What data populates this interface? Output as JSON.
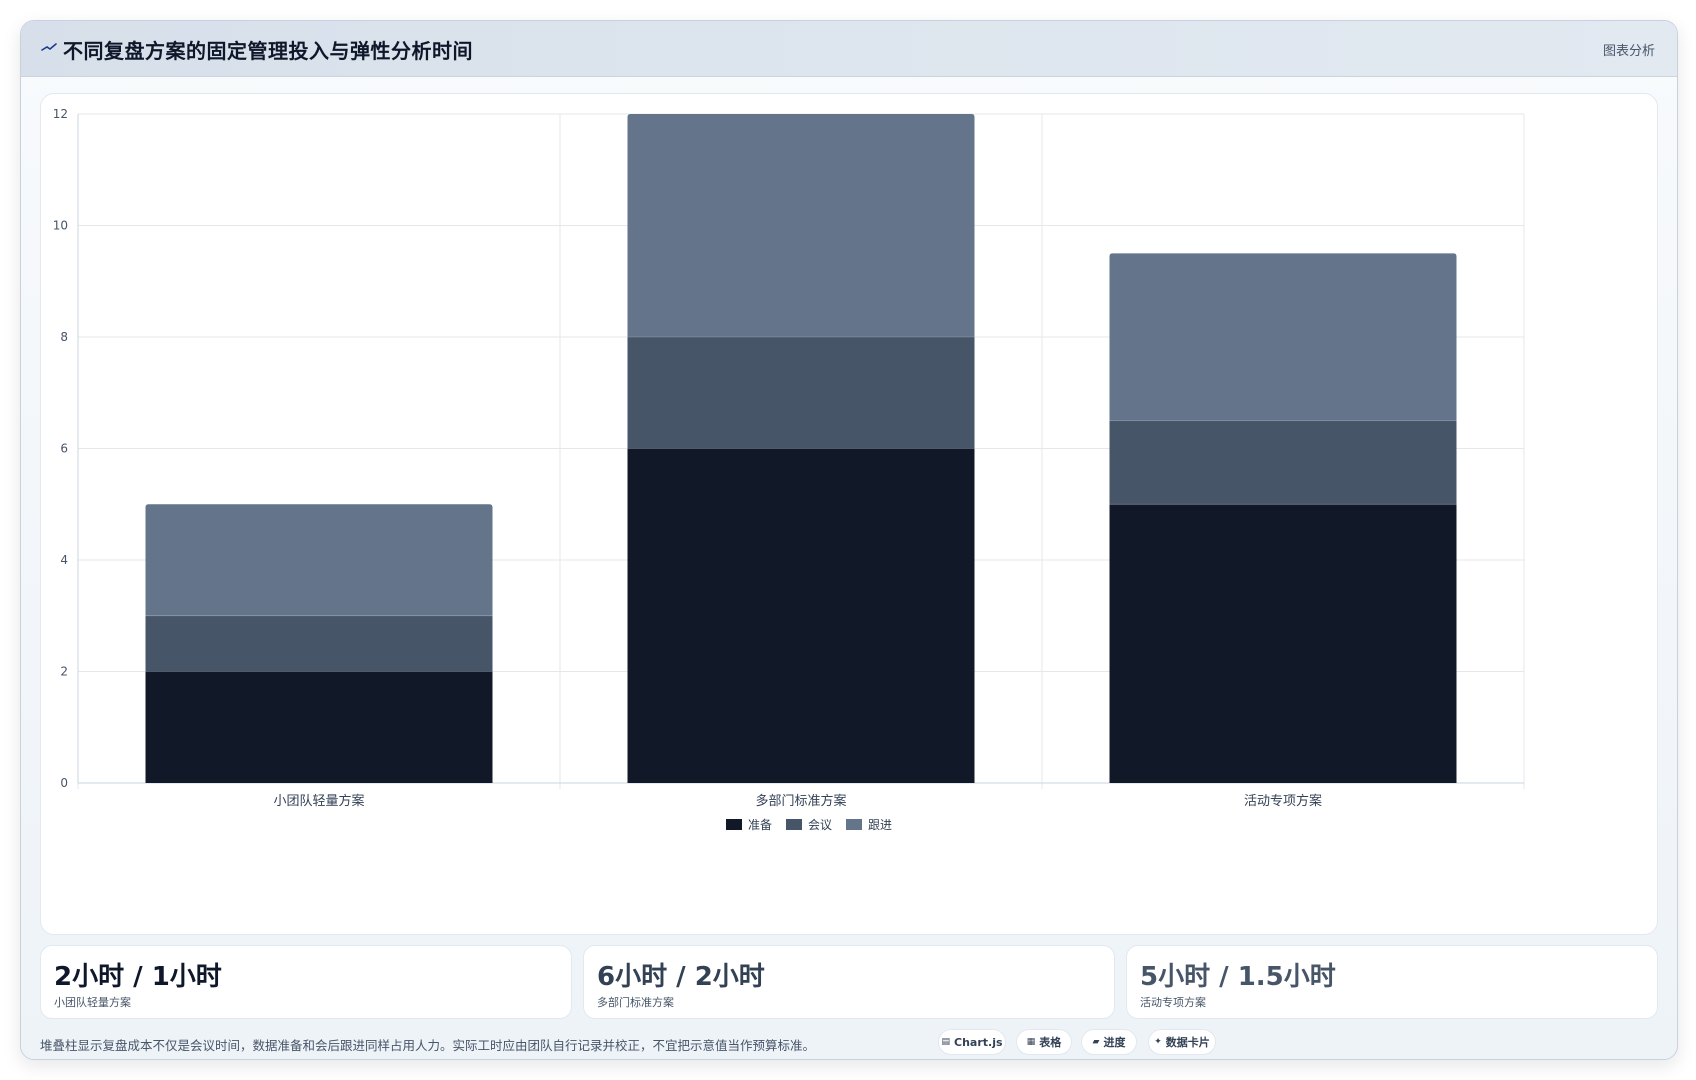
{
  "header": {
    "title": "不同复盘方案的固定管理投入与弹性分析时间",
    "tag": "图表分析"
  },
  "chart_data": {
    "type": "bar",
    "stacked": true,
    "categories": [
      "小团队轻量方案",
      "多部门标准方案",
      "活动专项方案"
    ],
    "series": [
      {
        "name": "准备",
        "values": [
          2,
          6,
          5
        ],
        "color": "#111827"
      },
      {
        "name": "会议",
        "values": [
          1,
          2,
          1.5
        ],
        "color": "#475569"
      },
      {
        "name": "跟进",
        "values": [
          2,
          4,
          3
        ],
        "color": "#64748b"
      }
    ],
    "ylim": [
      0,
      12
    ],
    "yticks": [
      0,
      2,
      4,
      6,
      8,
      10,
      12
    ],
    "grid": true,
    "legend": "bottom"
  },
  "cards": [
    {
      "value": "2小时 / 1小时",
      "label": "小团队轻量方案",
      "color": "#0f172a"
    },
    {
      "value": "6小时 / 2小时",
      "label": "多部门标准方案",
      "color": "#334155"
    },
    {
      "value": "5小时 / 1.5小时",
      "label": "活动专项方案",
      "color": "#475569"
    }
  ],
  "footer": {
    "note": "堆叠柱显示复盘成本不仅是会议时间，数据准备和会后跟进同样占用人力。实际工时应由团队自行记录并校正，不宜把示意值当作预算标准。",
    "chips": [
      {
        "icon": "▤",
        "label": "Chart.js"
      },
      {
        "icon": "▦",
        "label": "表格"
      },
      {
        "icon": "▰",
        "label": "进度"
      },
      {
        "icon": "✦",
        "label": "数据卡片"
      }
    ]
  }
}
